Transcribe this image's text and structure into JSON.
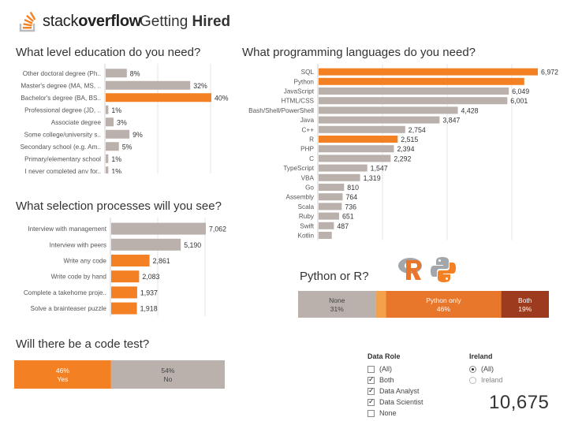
{
  "header": {
    "logo_text_light": "stack",
    "logo_text_bold": "overflow",
    "title_light": "Getting ",
    "title_bold": "Hired"
  },
  "colors": {
    "orange": "#F48024",
    "gray": "#BAB0AC",
    "dark_orange": "#E8762B",
    "brown": "#9C3B1E",
    "light_orange": "#F5A04A",
    "grid": "#E4E4E4",
    "text": "#333333"
  },
  "sections": {
    "education": "What level education do you need?",
    "languages": "What programming languages do you need?",
    "selection": "What selection processes will you see?",
    "code_test": "Will there be a code test?",
    "python_r": "Python or R?"
  },
  "filters": {
    "data_role": {
      "title": "Data Role",
      "options": [
        {
          "label": "(All)",
          "checked": false
        },
        {
          "label": "Both",
          "checked": true
        },
        {
          "label": "Data Analyst",
          "checked": true
        },
        {
          "label": "Data Scientist",
          "checked": true
        },
        {
          "label": "None",
          "checked": false
        }
      ]
    },
    "country": {
      "title": "Ireland",
      "options": [
        {
          "label": "(All)",
          "selected": true
        },
        {
          "label": "Ireland",
          "selected": false
        }
      ]
    }
  },
  "total_count": "10,675",
  "icons": {
    "logo": "stackoverflow-logo-icon",
    "r": "r-logo-icon",
    "python": "python-logo-icon"
  },
  "chart_data": [
    {
      "id": "education",
      "type": "bar",
      "orientation": "horizontal",
      "categories": [
        "Other doctoral degree (Ph..",
        "Master's degree (MA, MS, ..",
        "Bachelor's degree (BA, BS..",
        "Professional degree (JD, ..",
        "Associate degree",
        "Some college/university s..",
        "Secondary school (e.g. Am..",
        "Primary/elementary school",
        "I never completed any for.."
      ],
      "values": [
        8,
        32,
        40,
        1,
        3,
        9,
        5,
        1,
        1
      ],
      "value_labels": [
        "8%",
        "32%",
        "40%",
        "1%",
        "3%",
        "9%",
        "5%",
        "1%",
        "1%"
      ],
      "highlight": [
        false,
        false,
        true,
        false,
        false,
        false,
        false,
        false,
        false
      ],
      "xlim": [
        0,
        42
      ]
    },
    {
      "id": "languages",
      "type": "bar",
      "orientation": "horizontal",
      "categories": [
        "SQL",
        "Python",
        "JavaScript",
        "HTML/CSS",
        "Bash/Shell/PowerShell",
        "Java",
        "C++",
        "R",
        "PHP",
        "C",
        "TypeScript",
        "VBA",
        "Go",
        "Assembly",
        "Scala",
        "Ruby",
        "Swift",
        "Kotlin"
      ],
      "values": [
        6972,
        6540,
        6049,
        6001,
        4428,
        3847,
        2754,
        2515,
        2394,
        2292,
        1547,
        1319,
        810,
        764,
        736,
        651,
        487,
        420
      ],
      "value_labels": [
        "6,972",
        "",
        "6,049",
        "6,001",
        "4,428",
        "3,847",
        "2,754",
        "2,515",
        "2,394",
        "2,292",
        "1,547",
        "1,319",
        "810",
        "764",
        "736",
        "651",
        "487",
        ""
      ],
      "highlight": [
        true,
        true,
        false,
        false,
        false,
        false,
        false,
        true,
        false,
        false,
        false,
        false,
        false,
        false,
        false,
        false,
        false,
        false
      ],
      "xlim": [
        0,
        7400
      ]
    },
    {
      "id": "selection",
      "type": "bar",
      "orientation": "horizontal",
      "categories": [
        "Interview with management",
        "Interview with peers",
        "Write any code",
        "Write code by hand",
        "Complete a takehome proje..",
        "Solve a brainteaser puzzle"
      ],
      "values": [
        7062,
        5190,
        2861,
        2083,
        1937,
        1918
      ],
      "value_labels": [
        "7,062",
        "5,190",
        "2,861",
        "2,083",
        "1,937",
        "1,918"
      ],
      "highlight": [
        false,
        false,
        true,
        true,
        true,
        true
      ],
      "xlim": [
        0,
        7062
      ]
    },
    {
      "id": "code_test",
      "type": "bar",
      "orientation": "stacked",
      "segments": [
        {
          "pct_label": "46%",
          "name": "Yes",
          "value": 46,
          "color": "#F48024"
        },
        {
          "pct_label": "54%",
          "name": "No",
          "value": 54,
          "color": "#BAB0AC"
        }
      ]
    },
    {
      "id": "python_r",
      "type": "bar",
      "orientation": "stacked",
      "segments": [
        {
          "name": "None",
          "pct_label": "31%",
          "value": 31,
          "color": "#BAB0AC"
        },
        {
          "name": "",
          "pct_label": "",
          "value": 4,
          "color": "#F5A04A"
        },
        {
          "name": "Python only",
          "pct_label": "46%",
          "value": 46,
          "color": "#E8762B"
        },
        {
          "name": "Both",
          "pct_label": "19%",
          "value": 19,
          "color": "#9C3B1E"
        }
      ]
    }
  ]
}
